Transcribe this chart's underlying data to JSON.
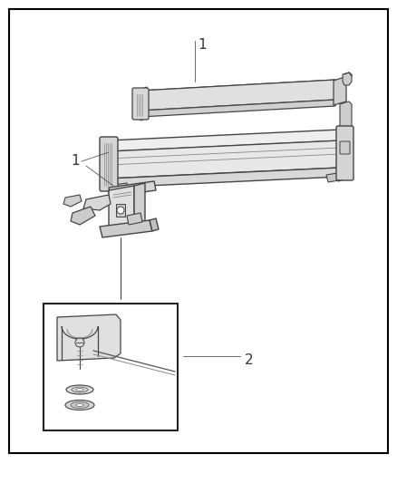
{
  "background_color": "#ffffff",
  "border_color": "#000000",
  "line_color": "#444444",
  "light_gray": "#e8e8e8",
  "mid_gray": "#cccccc",
  "dark_gray": "#aaaaaa",
  "label1": "1",
  "label2": "2",
  "fig_width": 4.38,
  "fig_height": 5.33,
  "dpi": 100
}
